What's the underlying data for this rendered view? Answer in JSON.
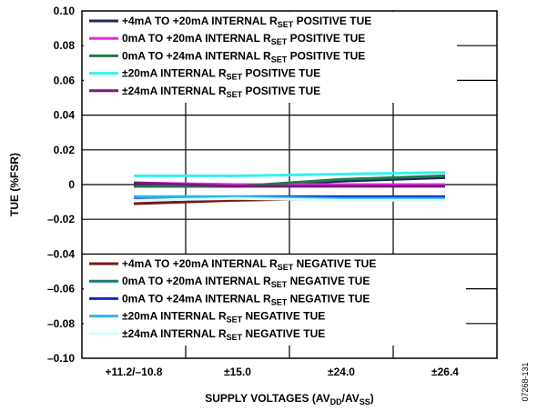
{
  "chart_data": {
    "type": "line",
    "ylabel": "TUE (%FSR)",
    "xlabel": "SUPPLY VOLTAGES (AV",
    "xlabel_sub1": "DD",
    "xlabel_mid": "/AV",
    "xlabel_sub2": "SS",
    "xlabel_end": ")",
    "categories": [
      "+11.2/–10.8",
      "±15.0",
      "±24.0",
      "±26.4"
    ],
    "ylim": [
      -0.1,
      0.1
    ],
    "yticks": [
      0.1,
      0.08,
      0.06,
      0.04,
      0.02,
      0,
      -0.02,
      -0.04,
      -0.06,
      -0.08,
      -0.1
    ],
    "ytick_labels": [
      "0.10",
      "0.08",
      "0.06",
      "0.04",
      "0.02",
      "0",
      "–0.02",
      "–0.04",
      "–0.06",
      "–0.08",
      "–0.10"
    ],
    "grid": true,
    "legend_positions": [
      "top-left",
      "bottom-left"
    ],
    "series": [
      {
        "name": "+4mA TO +20mA INTERNAL RSET POSITIVE TUE",
        "label_pre": "+4mA TO +20mA INTERNAL R",
        "label_post": " POSITIVE TUE",
        "color": "#1c2a5e",
        "legend_group": "top",
        "values": [
          -0.001,
          -0.001,
          0.002,
          0.004
        ]
      },
      {
        "name": "0mA TO +20mA INTERNAL RSET POSITIVE TUE",
        "label_pre": "0mA TO +20mA INTERNAL R",
        "label_post": " POSITIVE TUE",
        "color": "#e829e6",
        "legend_group": "top",
        "values": [
          0.001,
          0.0,
          0.0,
          0.0
        ]
      },
      {
        "name": "0mA TO +24mA INTERNAL RSET POSITIVE TUE",
        "label_pre": "0mA TO +24mA INTERNAL R",
        "label_post": " POSITIVE TUE",
        "color": "#1f7a4d",
        "legend_group": "top",
        "values": [
          -0.001,
          -0.001,
          0.003,
          0.005
        ]
      },
      {
        "name": "±20mA INTERNAL RSET POSITIVE TUE",
        "label_pre": "±20mA INTERNAL R",
        "label_post": " POSITIVE TUE",
        "color": "#33f2f2",
        "legend_group": "top",
        "values": [
          0.005,
          0.005,
          0.006,
          0.007
        ]
      },
      {
        "name": "±24mA INTERNAL RSET POSITIVE TUE",
        "label_pre": "±24mA INTERNAL R",
        "label_post": " POSITIVE TUE",
        "color": "#7a1a7a",
        "legend_group": "top",
        "values": [
          0.001,
          -0.001,
          -0.001,
          -0.001
        ]
      },
      {
        "name": "+4mA TO +20mA INTERNAL RSET NEGATIVE TUE",
        "label_pre": "+4mA TO +20mA INTERNAL R",
        "label_post": " NEGATIVE TUE",
        "color": "#7a1515",
        "legend_group": "bottom",
        "values": [
          -0.011,
          -0.009,
          -0.008,
          -0.008
        ]
      },
      {
        "name": "0mA TO +20mA INTERNAL RSET NEGATIVE TUE",
        "label_pre": "0mA TO +20mA INTERNAL R",
        "label_post": " NEGATIVE TUE",
        "color": "#1a7a7a",
        "legend_group": "bottom",
        "values": [
          -0.007,
          -0.007,
          -0.007,
          -0.007
        ]
      },
      {
        "name": "0mA TO +24mA INTERNAL RSET NEGATIVE TUE",
        "label_pre": "0mA TO +24mA INTERNAL R",
        "label_post": " NEGATIVE TUE",
        "color": "#1024c8",
        "legend_group": "bottom",
        "values": [
          -0.008,
          -0.007,
          -0.007,
          -0.007
        ]
      },
      {
        "name": "±20mA INTERNAL RSET NEGATIVE TUE",
        "label_pre": "±20mA INTERNAL R",
        "label_post": " NEGATIVE TUE",
        "color": "#29b8e8",
        "legend_group": "bottom",
        "values": [
          -0.007,
          -0.007,
          -0.008,
          -0.008
        ]
      },
      {
        "name": "±24mA INTERNAL RSET NEGATIVE TUE",
        "label_pre": "±24mA INTERNAL R",
        "label_post": " NEGATIVE TUE",
        "color": "#d8fafa",
        "legend_group": "bottom",
        "values": [
          -0.009,
          -0.008,
          -0.009,
          -0.009
        ]
      }
    ],
    "legend_sub": "SET"
  },
  "figure_code": "07268-131"
}
